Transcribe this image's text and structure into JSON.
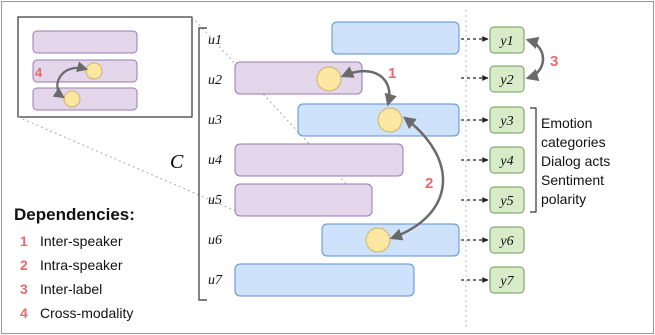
{
  "utterances": [
    "u1",
    "u2",
    "u3",
    "u4",
    "u5",
    "u6",
    "u7"
  ],
  "labels": [
    "y1",
    "y2",
    "y3",
    "y4",
    "y5",
    "y6",
    "y7"
  ],
  "context_symbol": "C",
  "label_types": [
    "Emotion",
    "categories",
    "Dialog acts",
    "Sentiment",
    "polarity"
  ],
  "dependencies_title": "Dependencies:",
  "dependencies": [
    {
      "num": "1",
      "label": "Inter-speaker"
    },
    {
      "num": "2",
      "label": "Intra-speaker"
    },
    {
      "num": "3",
      "label": "Inter-label"
    },
    {
      "num": "4",
      "label": "Cross-modality"
    }
  ],
  "colors": {
    "speaker_a": "#cfe2fb",
    "speaker_a_border": "#5b8fd6",
    "speaker_b": "#e3d5ea",
    "speaker_b_border": "#9b79b0",
    "label_box": "#d8ecc9",
    "label_border": "#6f9d55",
    "accent_number": "#e96a6a",
    "node": "#fbe6a2",
    "arrow": "#6a6a6a"
  }
}
